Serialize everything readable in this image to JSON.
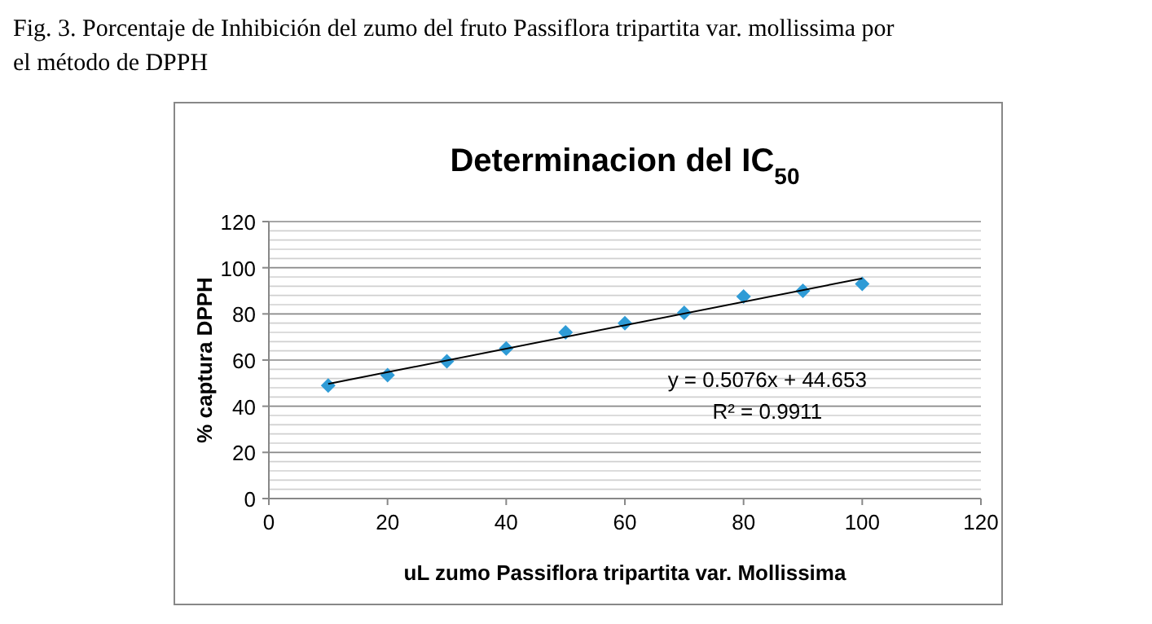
{
  "chart_data": {
    "type": "scatter",
    "title": "Determinacion del IC$_{50}$",
    "xlabel": "uL zumo Passiflora tripartita var. Mollissima",
    "ylabel": "% captura DPPH",
    "annotations": [
      "Fig. 3. Porcentaje de Inhibición del zumo del fruto Passiflora tripartita var. mollissima por el método de DPPH",
      "y = 0.5076x + 44.653",
      "R² = 0.9911"
    ],
    "x": [
      10,
      20,
      30,
      40,
      50,
      60,
      70,
      80,
      90,
      100
    ],
    "series": [
      {
        "color": "#2e9bd6",
        "marker": "diamond",
        "values": [
          49,
          53.5,
          59.5,
          65,
          72,
          76,
          80.5,
          87.5,
          90,
          93
        ]
      },
      {
        "type": "line",
        "color": "#000000",
        "marker": "none",
        "x": [
          10,
          100
        ],
        "values": [
          49.7,
          95.4
        ]
      }
    ],
    "xlim": [
      0,
      120
    ],
    "xticks": [
      0,
      20,
      40,
      60,
      80,
      100,
      120
    ],
    "ylim": [
      0,
      120
    ],
    "yticks": [
      0,
      20,
      40,
      60,
      80,
      100,
      120
    ],
    "grid": "y"
  }
}
